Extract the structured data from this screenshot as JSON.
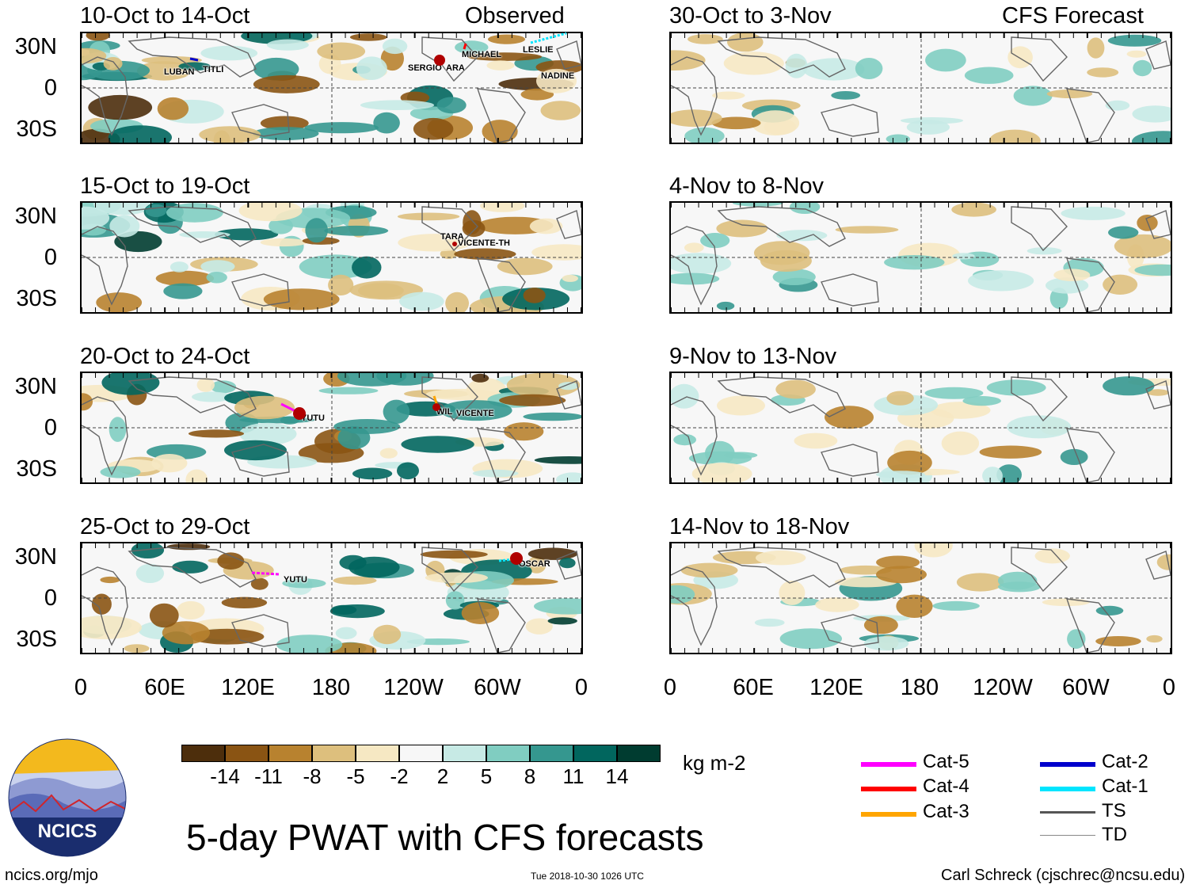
{
  "header": {
    "left_label": "Observed",
    "right_label": "CFS Forecast"
  },
  "observed_panels": [
    {
      "title": "10-Oct to 14-Oct",
      "storms": [
        "LUBAN",
        "TITLI",
        "SERGIO",
        "ARA",
        "MICHAEL",
        "LESLIE",
        "NADINE"
      ]
    },
    {
      "title": "15-Oct to 19-Oct",
      "storms": [
        "TARA",
        "VICENTE-TH"
      ]
    },
    {
      "title": "20-Oct to 24-Oct",
      "storms": [
        "YUTU",
        "WIL",
        "VICENTE"
      ]
    },
    {
      "title": "25-Oct to 29-Oct",
      "storms": [
        "YUTU",
        "OSCAR"
      ]
    }
  ],
  "forecast_panels": [
    {
      "title": "30-Oct to 3-Nov"
    },
    {
      "title": "4-Nov to 8-Nov"
    },
    {
      "title": "9-Nov to 13-Nov"
    },
    {
      "title": "14-Nov to 18-Nov"
    }
  ],
  "y_axis_labels": [
    "30N",
    "0",
    "30S"
  ],
  "x_axis_labels": [
    "0",
    "60E",
    "120E",
    "180",
    "120W",
    "60W",
    "0"
  ],
  "colorbar": {
    "tick_labels": [
      "-14",
      "-11",
      "-8",
      "-5",
      "-2",
      "2",
      "5",
      "8",
      "11",
      "14"
    ],
    "colors": [
      "#4d2e0c",
      "#8a5413",
      "#b8822f",
      "#ddbf7d",
      "#f6e8c3",
      "#f7f7f7",
      "#c7eae5",
      "#80cdc1",
      "#35978f",
      "#01665e",
      "#003c30"
    ],
    "units": "kg m-2"
  },
  "legend": [
    {
      "label": "Cat-5",
      "color": "#ff00ff"
    },
    {
      "label": "Cat-4",
      "color": "#ff0000"
    },
    {
      "label": "Cat-3",
      "color": "#ffa500"
    },
    {
      "label": "Cat-2",
      "color": "#0000cc"
    },
    {
      "label": "Cat-1",
      "color": "#00e5ff"
    },
    {
      "label": "TS",
      "color": "#555555"
    },
    {
      "label": "TD",
      "color": "#888888"
    }
  ],
  "logo": {
    "text": "NCICS"
  },
  "title": "5-day PWAT with CFS forecasts",
  "footer": {
    "url": "ncics.org/mjo",
    "timestamp": "Tue 2018-10-30 1026 UTC",
    "credit": "Carl Schreck (cjschrec@ncsu.edu)"
  }
}
